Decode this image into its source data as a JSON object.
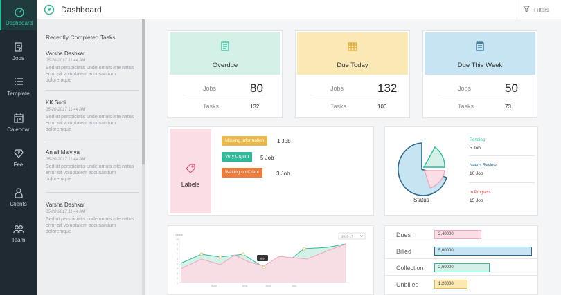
{
  "nav": {
    "items": [
      {
        "label": "Dashboard",
        "icon": "dashboard-icon"
      },
      {
        "label": "Jobs",
        "icon": "jobs-icon"
      },
      {
        "label": "Template",
        "icon": "template-icon"
      },
      {
        "label": "Calendar",
        "icon": "calendar-icon"
      },
      {
        "label": "Fee",
        "icon": "fee-icon"
      },
      {
        "label": "Clients",
        "icon": "clients-icon"
      },
      {
        "label": "Team",
        "icon": "team-icon"
      }
    ]
  },
  "header": {
    "title": "Dashboard",
    "filters_label": "Filters"
  },
  "recent": {
    "heading": "Recently Completed Tasks",
    "tasks": [
      {
        "name": "Varsha Deshkar",
        "date": "05-20-2017 11:44 AM",
        "body": "Sed ut perspiciatis unde omnis iste natus error sit voluptatem accusantium doloremque"
      },
      {
        "name": "KK Soni",
        "date": "05-20-2017 11:44 AM",
        "body": "Sed ut perspiciatis unde omnis iste natus error sit voluptatem accusantium doloremque"
      },
      {
        "name": "Anjali Malviya",
        "date": "05-20-2017 11:44 AM",
        "body": "Sed ut perspiciatis unde omnis iste natus error sit voluptatem accusantium doloremque"
      },
      {
        "name": "Varsha Deshkar",
        "date": "05-20-2017 11:44 AM",
        "body": "Sed ut perspiciatis unde omnis iste natus error sit voluptatem accusantium doloremque"
      }
    ]
  },
  "kpis": [
    {
      "title": "Overdue",
      "jobs_label": "Jobs",
      "jobs": "80",
      "tasks_label": "Tasks",
      "tasks": "132",
      "color": "#d4f1e8"
    },
    {
      "title": "Due Today",
      "jobs_label": "Jobs",
      "jobs": "132",
      "tasks_label": "Tasks",
      "tasks": "100",
      "color": "#fbe9b5"
    },
    {
      "title": "Due This Week",
      "jobs_label": "Jobs",
      "jobs": "50",
      "tasks_label": "Tasks",
      "tasks": "73",
      "color": "#c6e4f1"
    }
  ],
  "labels": {
    "title": "Labels",
    "tags": [
      {
        "name": "Missing Information",
        "count": "1 Job",
        "color": "#e8b94a"
      },
      {
        "name": "Very Urgent",
        "count": "5 Job",
        "color": "#2fb89a"
      },
      {
        "name": "Waiting on Client",
        "count": "3 Job",
        "color": "#f07c3a"
      }
    ]
  },
  "status": {
    "title": "Status",
    "items": [
      {
        "label": "Pending",
        "value": "5 Job",
        "color": "#2fb89a"
      },
      {
        "label": "Needs Review",
        "value": "10 Job",
        "color": "#2b6b8a"
      },
      {
        "label": "In Progress",
        "value": "15 Job",
        "color": "#e04b4b"
      }
    ]
  },
  "trend": {
    "ylabel": "Labels",
    "year_select": "2016-17",
    "tooltip": "6.8",
    "ticks_y": [
      "10",
      "9",
      "8",
      "7",
      "6",
      "5",
      "4",
      "3",
      "2",
      "1",
      "0"
    ],
    "months": [
      "April",
      "May",
      "June",
      "July"
    ]
  },
  "dues": {
    "rows": [
      {
        "label": "Dues",
        "value": "2,40000",
        "fill": 0.4,
        "bg": "#fbdde6",
        "border": "#f2a6bd"
      },
      {
        "label": "Billed",
        "value": "5,00000",
        "fill": 0.83,
        "bg": "#c6e4f1",
        "border": "#2b6b8a"
      },
      {
        "label": "Collection",
        "value": "2,60000",
        "fill": 0.47,
        "bg": "#d4f1e8",
        "border": "#2fb89a"
      },
      {
        "label": "Unbilled",
        "value": "1,20000",
        "fill": 0.28,
        "bg": "#fbe9b5",
        "border": "#e8b94a"
      }
    ]
  }
}
